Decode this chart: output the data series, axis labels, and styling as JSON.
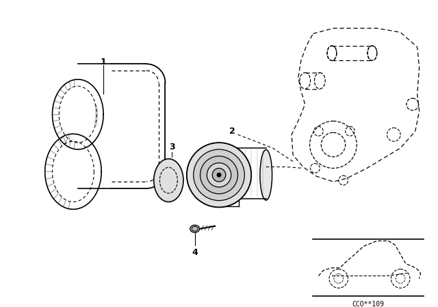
{
  "bg_color": "#ffffff",
  "line_color": "#000000",
  "fig_width": 6.4,
  "fig_height": 4.48,
  "dpi": 100,
  "part_label": "CCO**109"
}
